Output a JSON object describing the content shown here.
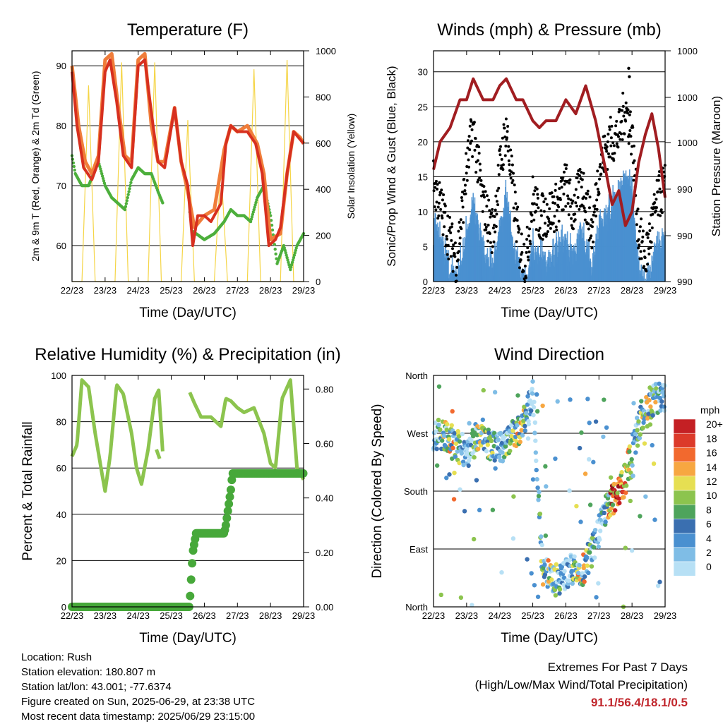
{
  "charts": {
    "temperature": {
      "title": "Temperature (F)",
      "xlabel": "Time (Day/UTC)",
      "ylabel_left": "2m & 9m T (Red, Orange) & 2m Td (Green)",
      "ylabel_right": "Solar Insolation (Yellow)",
      "y_ticks": [
        "60",
        "70",
        "80",
        "90"
      ],
      "y2_ticks": [
        "0",
        "200",
        "400",
        "600",
        "800",
        "1000"
      ]
    },
    "winds": {
      "title": "Winds (mph) & Pressure (mb)",
      "xlabel": "Time (Day/UTC)",
      "ylabel_left": "Sonic/Prop Wind & Gust (Blue, Black)",
      "ylabel_right": "Station Pressure (Maroon)",
      "y_ticks": [
        "0",
        "5",
        "10",
        "15",
        "20",
        "25",
        "30"
      ],
      "y2_ticks": [
        "990",
        "990",
        "990",
        "1000",
        "1000",
        "1000"
      ]
    },
    "humidity": {
      "title": "Relative Humidity (%) & Precipitation (in)",
      "xlabel": "Time (Day/UTC)",
      "ylabel_left": "Percent & Total Rainfall",
      "y_ticks": [
        "0",
        "20",
        "40",
        "60",
        "80",
        "100"
      ],
      "y2_ticks": [
        "0.00",
        "0.20",
        "0.40",
        "0.60",
        "0.80"
      ]
    },
    "direction": {
      "title": "Wind Direction",
      "xlabel": "Time (Day/UTC)",
      "ylabel_left": "Direction (Colored By Speed)",
      "y_ticks": [
        "North",
        "East",
        "South",
        "West",
        "North"
      ],
      "legend_title": "mph",
      "legend_labels": [
        "20+",
        "18",
        "16",
        "14",
        "12",
        "10",
        "8",
        "6",
        "4",
        "2",
        "0"
      ]
    }
  },
  "x_ticks": [
    "22/23",
    "23/23",
    "24/23",
    "25/23",
    "26/23",
    "27/23",
    "28/23",
    "29/23"
  ],
  "colors": {
    "temp_2m": "#d7301f",
    "temp_9m": "#f07d3a",
    "dewpoint": "#4daf3c",
    "solar": "#f5d547",
    "gust": "#000000",
    "wind": "#4a90d0",
    "pressure": "#a11d21",
    "humidity": "#8cc44e",
    "rainfall": "#47a83a",
    "extremes_values": "#c1272d",
    "speed_scale": [
      "#b7e0f5",
      "#7fbde6",
      "#4a90d0",
      "#3a6fb0",
      "#4ea45c",
      "#8cc44e",
      "#e6df52",
      "#f7a741",
      "#f2692e",
      "#dc3a2a",
      "#c42024",
      "#9c151b"
    ]
  },
  "chart_data": [
    {
      "type": "line",
      "name": "temperature",
      "x_unit": "day",
      "xlim": [
        22,
        29
      ],
      "ylim": [
        54,
        92.5
      ],
      "y2lim": [
        0,
        1000
      ],
      "series": [
        {
          "name": "2m T",
          "x": [
            22.0,
            22.15,
            22.35,
            22.6,
            22.8,
            23.0,
            23.15,
            23.35,
            23.55,
            23.8,
            24.0,
            24.2,
            24.45,
            24.6,
            24.8,
            25.1,
            25.3,
            25.5,
            25.65,
            25.8,
            26.0,
            26.2,
            26.5,
            26.65,
            26.8,
            27.0,
            27.3,
            27.55,
            27.75,
            27.95,
            28.15,
            28.3,
            28.5,
            28.7,
            28.85,
            29.0
          ],
          "y": [
            89,
            80,
            73,
            71,
            74,
            89,
            91,
            84,
            75,
            73,
            90,
            91,
            80,
            74,
            73,
            83,
            74,
            70,
            60,
            65,
            65,
            64,
            67,
            77,
            80,
            79,
            79,
            77,
            72,
            60,
            61,
            63,
            72,
            79,
            78,
            77
          ]
        },
        {
          "name": "9m T",
          "x": [
            22.0,
            22.2,
            22.4,
            22.6,
            22.8,
            23.0,
            23.2,
            23.4,
            23.6,
            23.8,
            24.0,
            24.2,
            24.4,
            24.6,
            24.8,
            25.1,
            25.3,
            25.5,
            25.7,
            26.0,
            26.3,
            26.6,
            26.8,
            27.0,
            27.3,
            27.6,
            27.8,
            28.0,
            28.3,
            28.5,
            28.7,
            28.9,
            29.0
          ],
          "y": [
            90,
            80,
            74,
            72,
            75,
            91,
            92,
            83,
            75,
            74,
            91,
            92,
            80,
            74,
            74,
            83,
            74,
            69,
            63,
            65,
            66,
            76,
            80,
            79,
            80,
            77,
            72,
            61,
            62,
            72,
            79,
            78,
            77
          ]
        },
        {
          "name": "2m Td",
          "x": [
            22.0,
            22.1,
            22.3,
            22.5,
            22.8,
            23.0,
            23.2,
            23.4,
            23.6,
            23.8,
            24.0,
            24.2,
            24.4,
            24.6,
            24.75,
            25.55,
            25.65,
            25.75,
            26.0,
            26.3,
            26.6,
            26.8,
            27.0,
            27.2,
            27.4,
            27.6,
            27.8,
            28.0,
            28.2,
            28.4,
            28.6,
            28.8,
            29.0
          ],
          "y": [
            75,
            72,
            70,
            70,
            74,
            70,
            68,
            67,
            66,
            71,
            73,
            72,
            72,
            69,
            67,
            66,
            62,
            62,
            61,
            62,
            64,
            66,
            65,
            65,
            64,
            68,
            70,
            65,
            57,
            60,
            56,
            60,
            62
          ]
        },
        {
          "name": "Solar",
          "axis": "right",
          "x": [
            22.0,
            22.3,
            22.5,
            22.7,
            22.9,
            23.3,
            23.5,
            23.7,
            23.9,
            24.3,
            24.5,
            24.7,
            24.9,
            25.3,
            25.5,
            25.7,
            25.9,
            26.3,
            26.5,
            26.7,
            26.9,
            27.3,
            27.5,
            27.7,
            27.9,
            28.3,
            28.5,
            28.7,
            28.9,
            29.0
          ],
          "y": [
            0,
            0,
            850,
            0,
            0,
            0,
            950,
            0,
            0,
            0,
            950,
            0,
            0,
            0,
            700,
            0,
            0,
            0,
            500,
            0,
            0,
            0,
            920,
            0,
            0,
            0,
            960,
            0,
            0,
            0
          ]
        }
      ]
    },
    {
      "type": "line",
      "name": "winds",
      "x_unit": "day",
      "xlim": [
        22,
        29
      ],
      "ylim": [
        0,
        33
      ],
      "series": [
        {
          "name": "Wind",
          "x": [
            22.0,
            22.2,
            22.5,
            22.7,
            23.0,
            23.2,
            23.5,
            23.8,
            24.0,
            24.2,
            24.4,
            24.6,
            24.8,
            25.0,
            25.2,
            25.5,
            25.8,
            26.0,
            26.2,
            26.5,
            26.8,
            27.0,
            27.3,
            27.6,
            27.8,
            28.0,
            28.2,
            28.4,
            28.6,
            28.8,
            29.0
          ],
          "y": [
            10,
            7,
            3,
            1,
            8,
            12,
            5,
            3,
            9,
            13,
            7,
            2,
            1,
            6,
            5,
            4,
            6,
            7,
            5,
            8,
            3,
            9,
            11,
            14,
            17,
            14,
            3,
            1,
            4,
            6,
            8
          ]
        },
        {
          "name": "Gust",
          "x": [
            22.0,
            22.2,
            22.5,
            22.7,
            23.0,
            23.2,
            23.5,
            23.8,
            24.0,
            24.2,
            24.4,
            24.6,
            24.8,
            25.0,
            25.2,
            25.5,
            25.8,
            26.0,
            26.2,
            26.5,
            26.8,
            27.0,
            27.3,
            27.6,
            27.8,
            28.0,
            28.2,
            28.4,
            28.6,
            28.8,
            29.0
          ],
          "y": [
            14,
            11,
            6,
            3,
            16,
            22,
            11,
            7,
            16,
            22,
            13,
            5,
            3,
            12,
            9,
            10,
            11,
            14,
            10,
            14,
            7,
            16,
            20,
            21,
            25,
            21,
            7,
            3,
            8,
            12,
            14
          ]
        },
        {
          "name": "Station Pressure",
          "axis": "right",
          "x": [
            22.0,
            22.2,
            22.5,
            22.8,
            23.0,
            23.2,
            23.5,
            23.8,
            24.0,
            24.2,
            24.5,
            24.7,
            25.0,
            25.2,
            25.4,
            25.7,
            26.0,
            26.3,
            26.6,
            26.9,
            27.2,
            27.4,
            27.6,
            27.8,
            28.0,
            28.2,
            28.4,
            28.6,
            28.8,
            29.0
          ],
          "y": [
            16,
            20,
            22,
            26,
            26,
            29,
            26,
            26,
            28,
            29,
            26,
            26,
            23,
            22,
            23,
            23,
            26,
            24,
            28,
            23,
            16,
            11,
            13,
            8,
            10,
            17,
            21,
            24,
            19,
            12
          ]
        }
      ]
    },
    {
      "type": "line",
      "name": "humidity",
      "x_unit": "day",
      "xlim": [
        22,
        29
      ],
      "ylim": [
        0,
        100
      ],
      "y2lim": [
        0,
        0.85
      ],
      "series": [
        {
          "name": "Relative Humidity",
          "x": [
            22.0,
            22.15,
            22.3,
            22.5,
            22.7,
            22.9,
            23.0,
            23.15,
            23.35,
            23.55,
            23.8,
            23.95,
            24.1,
            24.3,
            24.5,
            24.6,
            24.75,
            25.55,
            25.7,
            25.9,
            26.2,
            26.5,
            26.65,
            26.8,
            27.0,
            27.2,
            27.5,
            27.8,
            28.0,
            28.15,
            28.35,
            28.6,
            28.8,
            29.0
          ],
          "y": [
            65,
            70,
            98,
            95,
            75,
            58,
            50,
            65,
            96,
            92,
            75,
            60,
            53,
            68,
            90,
            98,
            65,
            93,
            88,
            82,
            82,
            78,
            90,
            89,
            86,
            84,
            86,
            75,
            62,
            60,
            90,
            98,
            60,
            55
          ]
        },
        {
          "name": "Total Rainfall",
          "axis": "right",
          "x": [
            22.0,
            25.4,
            25.55,
            25.6,
            25.65,
            25.75,
            26.0,
            26.4,
            26.6,
            26.65,
            26.8,
            26.85,
            27.0,
            27.5,
            28.0,
            28.5,
            29.0
          ],
          "y": [
            0,
            0,
            0,
            0.1,
            0.2,
            0.27,
            0.27,
            0.27,
            0.27,
            0.3,
            0.43,
            0.49,
            0.49,
            0.49,
            0.49,
            0.49,
            0.49
          ]
        }
      ]
    },
    {
      "type": "scatter",
      "name": "wind_direction",
      "x_unit": "day",
      "xlim": [
        22,
        29
      ],
      "ylim": [
        0,
        360
      ],
      "series": [
        {
          "name": "Direction",
          "x": [
            22.1,
            22.4,
            22.7,
            23.1,
            23.4,
            23.7,
            24.1,
            24.4,
            24.7,
            25.0,
            25.3,
            25.6,
            25.9,
            26.2,
            26.5,
            26.8,
            27.0,
            27.3,
            27.6,
            27.8,
            28.0,
            28.3,
            28.6,
            28.9
          ],
          "y": [
            270,
            260,
            250,
            240,
            275,
            250,
            250,
            270,
            280,
            330,
            60,
            40,
            45,
            60,
            55,
            90,
            120,
            160,
            180,
            200,
            240,
            300,
            320,
            330
          ]
        }
      ]
    }
  ],
  "info": {
    "location": "Location: Rush",
    "elevation": "Station elevation: 180.807 m",
    "latlon": "Station lat/lon: 43.001; -77.6374",
    "created": "Figure created on Sun, 2025-06-29, at 23:38 UTC",
    "recent": "Most recent data timestamp: 2025/06/29 23:15:00"
  },
  "extremes": {
    "title": "Extremes For Past 7 Days",
    "subtitle": "(High/Low/Max Wind/Total Precipitation)",
    "values": "91.1/56.4/18.1/0.5"
  }
}
